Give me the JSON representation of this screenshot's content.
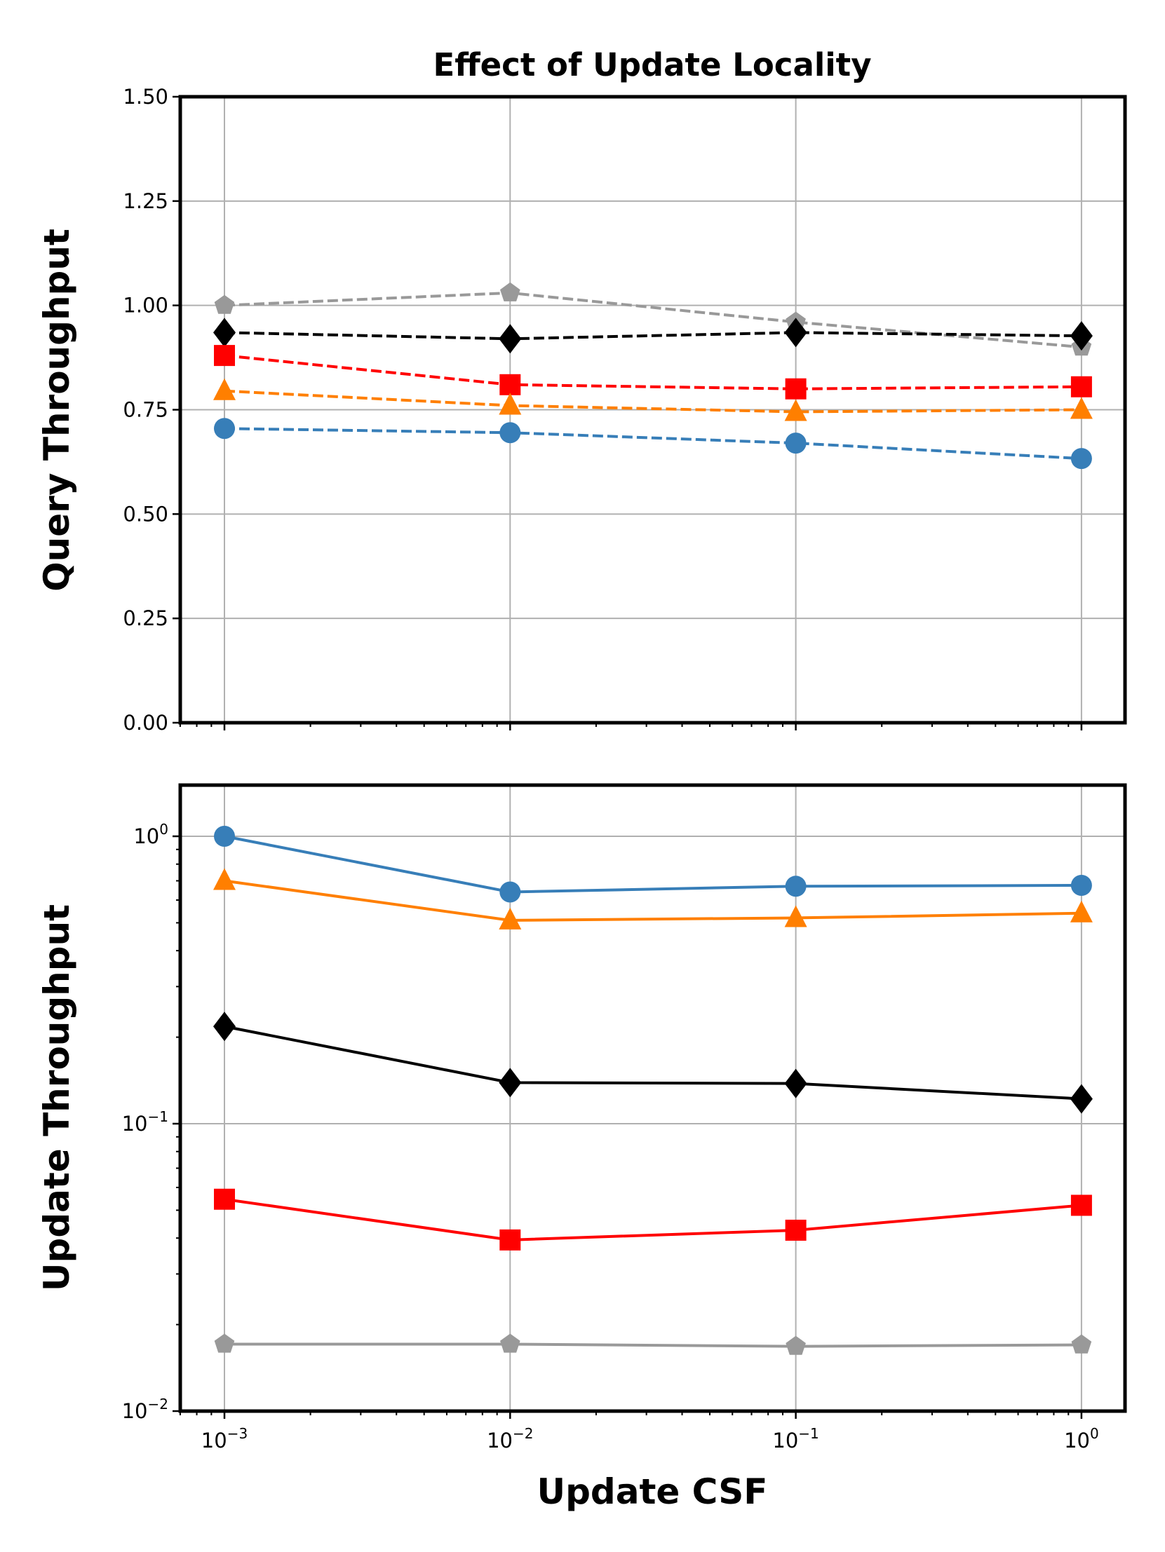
{
  "chart_data": [
    {
      "type": "line",
      "title": "Effect of Update Locality",
      "xlabel": "",
      "ylabel": "Query Throughput",
      "xscale": "log",
      "yscale": "linear",
      "x": [
        0.001,
        0.01,
        0.1,
        1
      ],
      "ylim": [
        0,
        1.5
      ],
      "yticks": [
        "0.00",
        "0.25",
        "0.50",
        "0.75",
        "1.00",
        "1.25",
        "1.50"
      ],
      "ytick_values": [
        0,
        0.25,
        0.5,
        0.75,
        1.0,
        1.25,
        1.5
      ],
      "grid": true,
      "linestyle": "dashed",
      "series": [
        {
          "marker": "pentagon",
          "color": "#999999",
          "values": [
            1.0,
            1.03,
            0.96,
            0.9
          ]
        },
        {
          "marker": "diamond",
          "color": "#000000",
          "values": [
            0.935,
            0.92,
            0.935,
            0.927
          ]
        },
        {
          "marker": "square",
          "color": "#ff0000",
          "values": [
            0.88,
            0.81,
            0.8,
            0.805
          ]
        },
        {
          "marker": "triangle",
          "color": "#ff7f00",
          "values": [
            0.795,
            0.76,
            0.745,
            0.75
          ]
        },
        {
          "marker": "circle",
          "color": "#377eb8",
          "values": [
            0.705,
            0.695,
            0.67,
            0.633
          ]
        }
      ]
    },
    {
      "type": "line",
      "title": "",
      "xlabel": "Update CSF",
      "ylabel": "Update Throughput",
      "xscale": "log",
      "yscale": "log",
      "x": [
        0.001,
        0.01,
        0.1,
        1
      ],
      "xticks": [
        {
          "base": "10",
          "exp": "−3"
        },
        {
          "base": "10",
          "exp": "−2"
        },
        {
          "base": "10",
          "exp": "−1"
        },
        {
          "base": "10",
          "exp": "0"
        }
      ],
      "ylim": [
        0.01,
        1.5
      ],
      "yticks": [
        {
          "base": "10",
          "exp": "−2"
        },
        {
          "base": "10",
          "exp": "−1"
        },
        {
          "base": "10",
          "exp": "0"
        }
      ],
      "ytick_values": [
        0.01,
        0.1,
        1
      ],
      "grid": true,
      "linestyle": "solid",
      "series": [
        {
          "marker": "circle",
          "color": "#377eb8",
          "values": [
            1.0,
            0.64,
            0.67,
            0.675
          ]
        },
        {
          "marker": "triangle",
          "color": "#ff7f00",
          "values": [
            0.7,
            0.51,
            0.52,
            0.54
          ]
        },
        {
          "marker": "diamond",
          "color": "#000000",
          "values": [
            0.218,
            0.139,
            0.138,
            0.122
          ]
        },
        {
          "marker": "square",
          "color": "#ff0000",
          "values": [
            0.0546,
            0.0394,
            0.0426,
            0.052
          ]
        },
        {
          "marker": "pentagon",
          "color": "#999999",
          "values": [
            0.0171,
            0.0171,
            0.0168,
            0.017
          ]
        }
      ]
    }
  ]
}
